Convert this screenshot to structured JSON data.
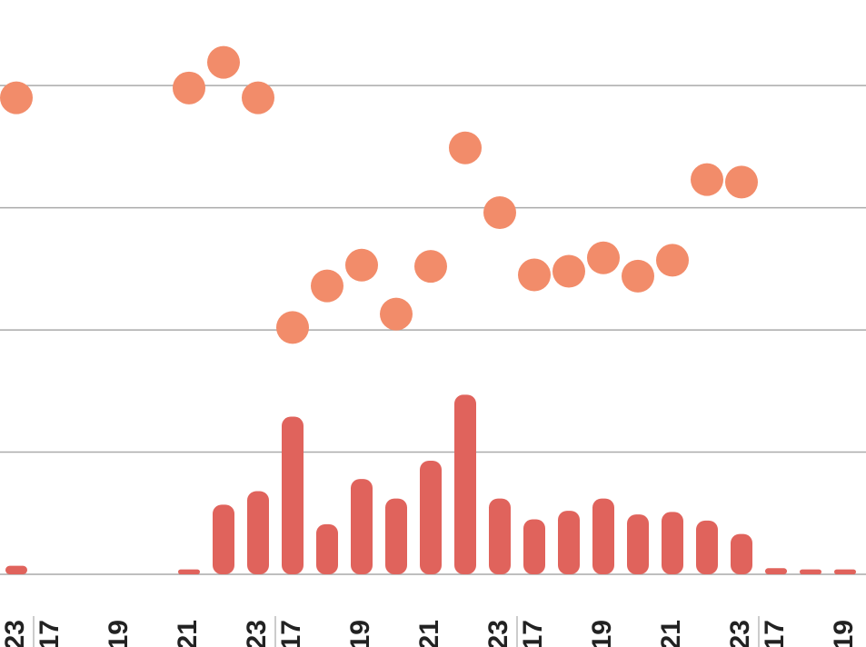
{
  "chart_data": {
    "type": "bar-dot",
    "categories": [
      "23",
      "17",
      null,
      "19",
      null,
      "21",
      null,
      "23",
      "17",
      null,
      "19",
      null,
      "21",
      null,
      "23",
      "17",
      null,
      "19",
      null,
      "21",
      null,
      "23",
      "17",
      null,
      "19"
    ],
    "ylim": [
      0,
      4.7
    ],
    "yticks": [
      0,
      1,
      2,
      3,
      4
    ],
    "grid": true,
    "series": [
      {
        "kind": "bar",
        "color": "#e0635c",
        "values": [
          0.07,
          0,
          0,
          0,
          0,
          0.04,
          0.57,
          0.68,
          1.29,
          0.41,
          0.78,
          0.62,
          0.93,
          1.47,
          0.62,
          0.45,
          0.52,
          0.62,
          0.49,
          0.51,
          0.44,
          0.33,
          0.05,
          0.04,
          0.04
        ]
      },
      {
        "kind": "dot",
        "color": "#f28c6a",
        "values": [
          3.9,
          null,
          null,
          null,
          null,
          3.98,
          4.19,
          3.9,
          2.02,
          2.36,
          2.53,
          2.13,
          2.52,
          3.49,
          2.96,
          2.45,
          2.48,
          2.59,
          2.44,
          2.57,
          3.23,
          3.21,
          null,
          null,
          null
        ]
      }
    ],
    "group_starts": [
      1,
      8,
      15,
      22
    ]
  }
}
